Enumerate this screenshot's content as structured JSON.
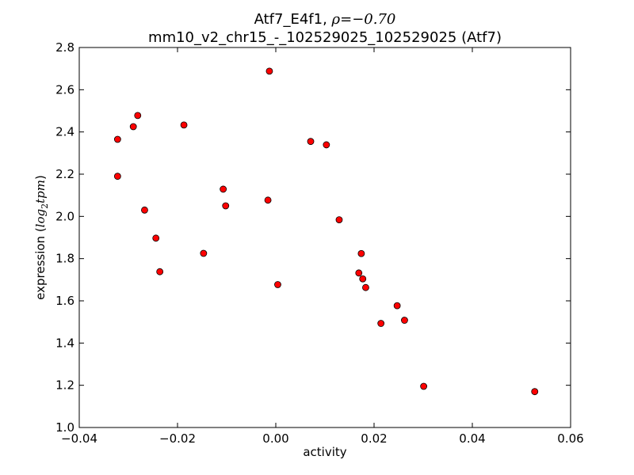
{
  "chart_data": {
    "type": "scatter",
    "title_line1": "Atf7_E4f1, ",
    "title_rho": "ρ=−0.70",
    "title_line2": "mm10_v2_chr15_-_102529025_102529025 (Atf7)",
    "xlabel": "activity",
    "ylabel_prefix": "expression (",
    "ylabel_math": "log",
    "ylabel_sub": "2",
    "ylabel_math2": "tpm",
    "ylabel_suffix": ")",
    "xlim": [
      -0.04,
      0.06
    ],
    "ylim": [
      1.0,
      2.8
    ],
    "xticks": [
      -0.04,
      -0.02,
      0.0,
      0.02,
      0.04,
      0.06
    ],
    "xtick_labels": [
      "−0.04",
      "−0.02",
      "0.00",
      "0.02",
      "0.04",
      "0.06"
    ],
    "yticks": [
      1.0,
      1.2,
      1.4,
      1.6,
      1.8,
      2.0,
      2.2,
      2.4,
      2.6,
      2.8
    ],
    "ytick_labels": [
      "1.0",
      "1.2",
      "1.4",
      "1.6",
      "1.8",
      "2.0",
      "2.2",
      "2.4",
      "2.6",
      "2.8"
    ],
    "grid": false,
    "marker_color": "#ff0000",
    "marker_edge": "#000000",
    "points": [
      {
        "x": -0.0322,
        "y": 2.365
      },
      {
        "x": -0.0322,
        "y": 2.19
      },
      {
        "x": -0.029,
        "y": 2.425
      },
      {
        "x": -0.0281,
        "y": 2.478
      },
      {
        "x": -0.0267,
        "y": 2.03
      },
      {
        "x": -0.0244,
        "y": 1.897
      },
      {
        "x": -0.0236,
        "y": 1.738
      },
      {
        "x": -0.0187,
        "y": 2.433
      },
      {
        "x": -0.0147,
        "y": 1.825
      },
      {
        "x": -0.0107,
        "y": 2.129
      },
      {
        "x": -0.0102,
        "y": 2.05
      },
      {
        "x": -0.0016,
        "y": 2.077
      },
      {
        "x": -0.0013,
        "y": 2.688
      },
      {
        "x": 0.0004,
        "y": 1.677
      },
      {
        "x": 0.0071,
        "y": 2.355
      },
      {
        "x": 0.0103,
        "y": 2.339
      },
      {
        "x": 0.0129,
        "y": 1.984
      },
      {
        "x": 0.0169,
        "y": 1.732
      },
      {
        "x": 0.0174,
        "y": 1.824
      },
      {
        "x": 0.0177,
        "y": 1.704
      },
      {
        "x": 0.0183,
        "y": 1.663
      },
      {
        "x": 0.0214,
        "y": 1.493
      },
      {
        "x": 0.0247,
        "y": 1.577
      },
      {
        "x": 0.0262,
        "y": 1.508
      },
      {
        "x": 0.0301,
        "y": 1.195
      },
      {
        "x": 0.0527,
        "y": 1.17
      }
    ]
  }
}
